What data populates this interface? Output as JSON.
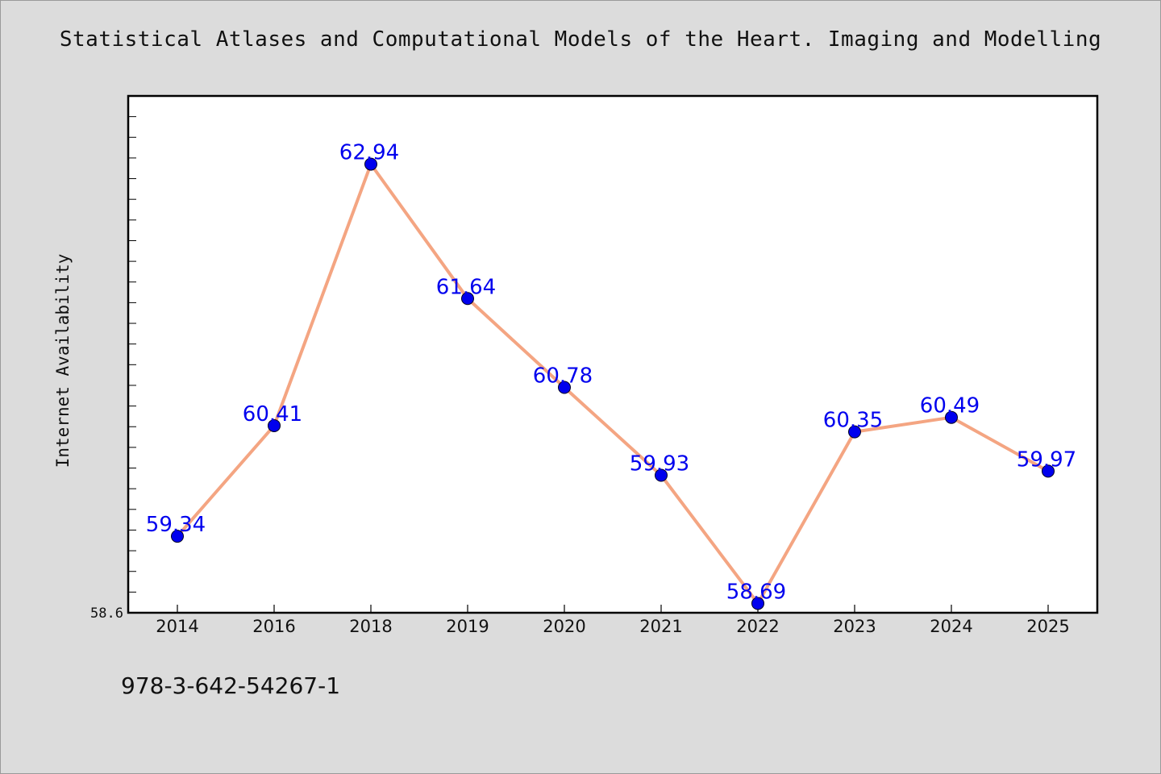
{
  "chart_data": {
    "type": "line",
    "title": "Statistical Atlases and Computational Models of the Heart. Imaging and Modelling",
    "subtitle": "978-3-642-54267-1",
    "xlabel": "",
    "ylabel": "Internet Availability",
    "categories": [
      "2014",
      "2016",
      "2018",
      "2019",
      "2020",
      "2021",
      "2022",
      "2023",
      "2024",
      "2025"
    ],
    "series": [
      {
        "values": [
          59.34,
          60.41,
          62.94,
          61.64,
          60.78,
          59.93,
          58.69,
          60.35,
          60.49,
          59.97
        ],
        "data_labels": [
          "59.34",
          "60.41",
          "62.94",
          "61.64",
          "60.78",
          "59.93",
          "58.69",
          "60.35",
          "60.49",
          "59.97"
        ]
      }
    ],
    "ylim": [
      58.6,
      63.6
    ],
    "y_tick_labels": [
      "58.6"
    ],
    "grid": false,
    "legend": "none",
    "colors": {
      "line": "#f4a582",
      "marker": "#0000ee",
      "label": "#0000ee",
      "background": "#dcdcdc",
      "plot_background": "#ffffff"
    }
  }
}
